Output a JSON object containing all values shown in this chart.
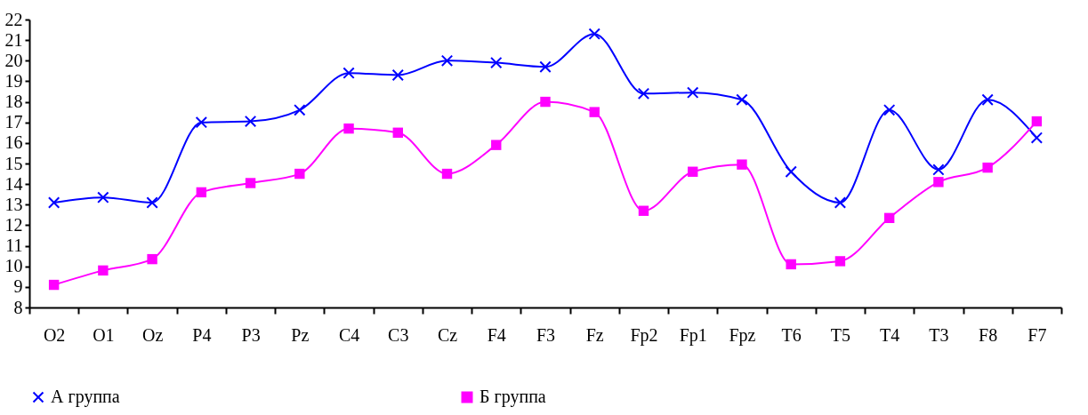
{
  "chart_data": {
    "type": "line",
    "categories": [
      "O2",
      "O1",
      "Oz",
      "P4",
      "P3",
      "Pz",
      "C4",
      "C3",
      "Cz",
      "F4",
      "F3",
      "Fz",
      "Fp2",
      "Fp1",
      "Fpz",
      "T6",
      "T5",
      "T4",
      "T3",
      "F8",
      "F7"
    ],
    "series": [
      {
        "name": "А группа",
        "color": "#0000ff",
        "marker": "cross",
        "values": [
          13.1,
          13.35,
          13.1,
          17.0,
          17.05,
          17.6,
          19.4,
          19.3,
          20.0,
          19.9,
          19.7,
          21.3,
          18.4,
          18.45,
          18.1,
          14.6,
          13.1,
          17.6,
          14.7,
          18.1,
          16.25
        ]
      },
      {
        "name": "Б группа",
        "color": "#ff00ff",
        "marker": "square",
        "values": [
          9.1,
          9.8,
          10.35,
          13.6,
          14.05,
          14.5,
          16.7,
          16.5,
          14.5,
          15.9,
          18.0,
          17.5,
          12.7,
          14.6,
          14.95,
          10.1,
          10.25,
          12.35,
          14.1,
          14.8,
          17.05
        ]
      }
    ],
    "ylim": [
      8,
      22
    ],
    "yticks": [
      8,
      9,
      10,
      11,
      12,
      13,
      14,
      15,
      16,
      17,
      18,
      19,
      20,
      21,
      22
    ],
    "grid": false,
    "legend": "bottom",
    "line_style": "solid"
  }
}
